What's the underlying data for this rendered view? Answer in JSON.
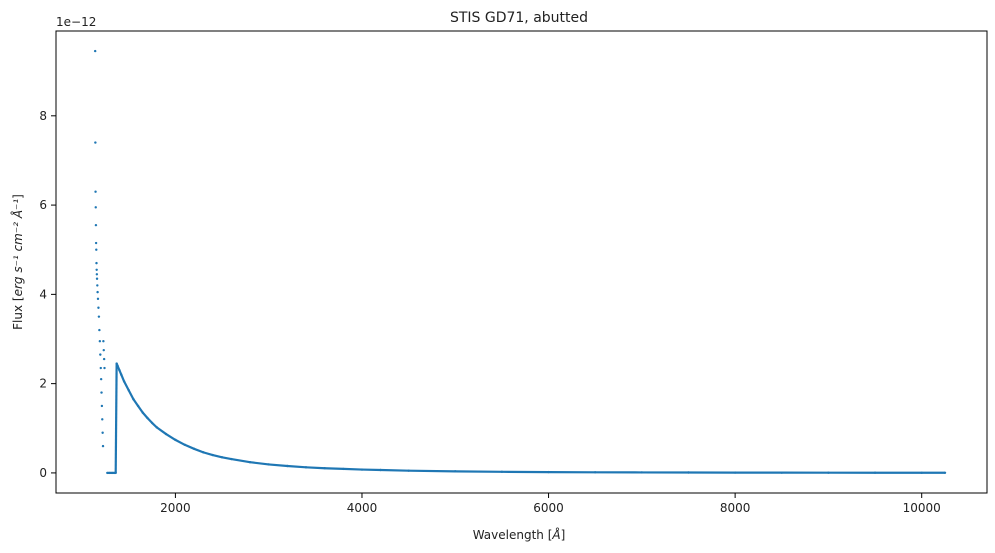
{
  "chart_data": {
    "type": "scatter",
    "title": "STIS GD71, abutted",
    "xlabel_prefix": "Wavelength [",
    "xlabel_unit": "Å",
    "xlabel_suffix": "]",
    "ylabel_prefix": "Flux [",
    "ylabel_unit": "erg s⁻¹ cm⁻² Å⁻¹",
    "ylabel_suffix": "]",
    "y_offset_label": "1e−12",
    "xlim": [
      720,
      10700
    ],
    "ylim": [
      -0.45,
      9.9
    ],
    "x_ticks": [
      2000,
      4000,
      6000,
      8000,
      10000
    ],
    "x_tick_labels": [
      "2000",
      "4000",
      "6000",
      "8000",
      "10000"
    ],
    "y_ticks": [
      0,
      2,
      4,
      6,
      8
    ],
    "y_tick_labels": [
      "0",
      "2",
      "4",
      "6",
      "8"
    ],
    "grid": false,
    "color": "#1f77b4",
    "y_scale_note": "y values in units of 1e-12",
    "series": [
      {
        "x": [
          1140,
          1142,
          1144,
          1146,
          1148,
          1150,
          1152,
          1154,
          1156,
          1158,
          1160,
          1163,
          1166,
          1170,
          1175,
          1180,
          1185,
          1190,
          1195,
          1200,
          1204,
          1208,
          1212,
          1216,
          1220,
          1224,
          1228,
          1232,
          1236,
          1240,
          1270,
          1290,
          1310,
          1330,
          1350,
          1360,
          1370,
          1380,
          1400,
          1420,
          1450,
          1500,
          1550,
          1600,
          1650,
          1700,
          1750,
          1800,
          1900,
          2000,
          2100,
          2200,
          2300,
          2400,
          2500,
          2600,
          2800,
          3000,
          3200,
          3400,
          3600,
          3800,
          4000,
          4200,
          4500,
          5000,
          5500,
          6000,
          6500,
          7000,
          7500,
          8000,
          8500,
          9000,
          9500,
          10000,
          10250
        ],
        "y": [
          9.45,
          7.4,
          6.3,
          5.95,
          5.55,
          5.15,
          5.0,
          4.7,
          4.55,
          4.45,
          4.35,
          4.2,
          4.05,
          3.9,
          3.7,
          3.5,
          3.2,
          2.95,
          2.65,
          2.35,
          2.1,
          1.8,
          1.5,
          1.2,
          0.9,
          0.6,
          2.95,
          2.75,
          2.55,
          2.35,
          0.0,
          0.0,
          0.0,
          0.0,
          0.0,
          0.0,
          2.45,
          2.4,
          2.3,
          2.2,
          2.05,
          1.85,
          1.65,
          1.5,
          1.35,
          1.23,
          1.12,
          1.02,
          0.87,
          0.74,
          0.63,
          0.54,
          0.46,
          0.4,
          0.35,
          0.31,
          0.24,
          0.19,
          0.155,
          0.125,
          0.105,
          0.09,
          0.075,
          0.065,
          0.05,
          0.035,
          0.025,
          0.018,
          0.014,
          0.011,
          0.009,
          0.007,
          0.006,
          0.005,
          0.004,
          0.003,
          0.003
        ]
      }
    ]
  }
}
